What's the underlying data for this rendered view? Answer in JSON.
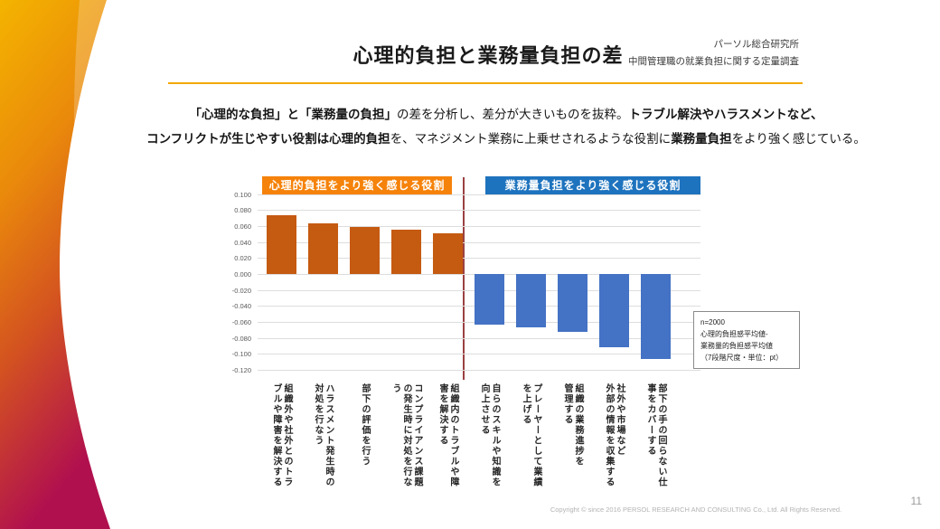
{
  "slide": {
    "title": "心理的負担と業務量負担の差",
    "source_line1": "パーソル総合研究所",
    "source_line2": "中間管理職の就業負担に関する定量調査",
    "page_number": "11",
    "copyright": "Copyright © since 2016 PERSOL RESEARCH AND CONSULTING Co., Ltd. All Rights Reserved."
  },
  "lead": {
    "line1": [
      {
        "text": "「心理的な負担」と「業務量の負担」",
        "bold": true
      },
      {
        "text": "の差を分析し、差分が大きいものを抜粋。",
        "bold": false
      },
      {
        "text": "トラブル解決やハラスメントなど、",
        "bold": true
      }
    ],
    "line2": [
      {
        "text": "コンフリクトが生じやすい役割は心理的負担",
        "bold": true
      },
      {
        "text": "を、マネジメント業務に上乗せされるような役割に",
        "bold": false
      },
      {
        "text": "業務量負担",
        "bold": true
      },
      {
        "text": "をより強く感じている。",
        "bold": false
      }
    ]
  },
  "chart": {
    "legend_left": "心理的負担をより強く感じる役割",
    "legend_right": "業務量負担をより強く感じる役割",
    "note_lines": [
      "n=2000",
      "心理的負担感平均値-",
      "業務量的負担感平均値",
      "（7段階尺度・単位：pt）"
    ],
    "colors": {
      "legend_left_bg": "#F5820A",
      "legend_right_bg": "#1E73BE",
      "divider": "#F2A900",
      "separator_line": "#9C4141",
      "bar_positive": "#C55A11",
      "bar_negative": "#4472C4"
    }
  },
  "chart_data": {
    "type": "bar",
    "title": "心理的負担と業務量負担の差",
    "xlabel": "",
    "ylabel": "",
    "ylim": [
      -0.12,
      0.1
    ],
    "ytick_step": 0.02,
    "grid": true,
    "unit": "pt",
    "legend_position": "top",
    "categories": [
      {
        "text": "組織外や社外とのトラブルや障害を解決する",
        "columns": [
          "組織外や社外とのトラ",
          "ブルや障害を解決する"
        ]
      },
      {
        "text": "ハラスメント発生時の対処を行なう",
        "columns": [
          "ハラスメント発生時の",
          "対処を行なう"
        ]
      },
      {
        "text": "部下の評価を行う",
        "columns": [
          "部下の評価を行う"
        ]
      },
      {
        "text": "コンプライアンス課題の発生時に対処を行なう",
        "columns": [
          "コンプライアンス課題",
          "の発生時に対処を行な",
          "う"
        ]
      },
      {
        "text": "組織内のトラブルや障害を解決する",
        "columns": [
          "組織内のトラブルや障",
          "害を解決する"
        ]
      },
      {
        "text": "自らのスキルや知識を向上させる",
        "columns": [
          "自らのスキルや知識を",
          "向上させる"
        ]
      },
      {
        "text": "プレーヤーとして業績を上げる",
        "columns": [
          "プレーヤーとして業績",
          "を上げる"
        ]
      },
      {
        "text": "組織の業務進捗を管理する",
        "columns": [
          "組織の業務進捗を",
          "管理する"
        ]
      },
      {
        "text": "社外や市場など外部の情報を収集する",
        "columns": [
          "社外や市場など",
          "外部の情報を収集する"
        ]
      },
      {
        "text": "部下の手の回らない仕事をカバーする",
        "columns": [
          "部下の手の回らない仕",
          "事をカバーする"
        ]
      }
    ],
    "values": [
      0.074,
      0.063,
      0.059,
      0.055,
      0.051,
      -0.063,
      -0.067,
      -0.072,
      -0.092,
      -0.107
    ],
    "groups": [
      {
        "name": "心理的負担をより強く感じる役割",
        "color": "#C55A11",
        "indices": [
          0,
          1,
          2,
          3,
          4
        ]
      },
      {
        "name": "業務量負担をより強く感じる役割",
        "color": "#4472C4",
        "indices": [
          5,
          6,
          7,
          8,
          9
        ]
      }
    ]
  }
}
